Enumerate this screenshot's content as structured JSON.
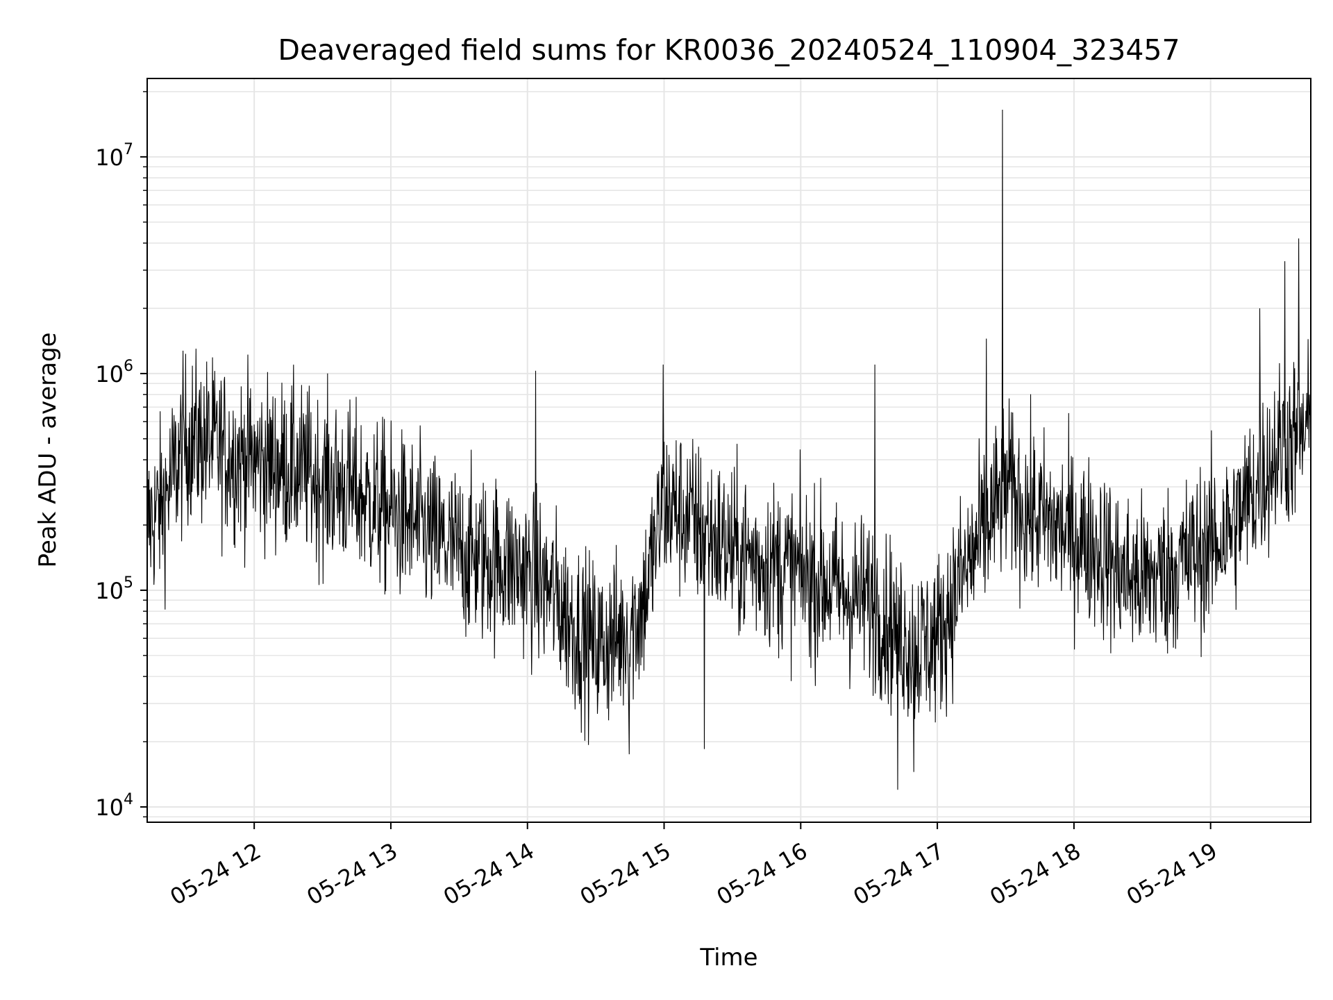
{
  "chart_data": {
    "type": "line",
    "title": "Deaveraged field sums for KR0036_20240524_110904_323457",
    "xlabel": "Time",
    "ylabel": "Peak ADU - average",
    "yscale": "log",
    "ylim": [
      8500,
      23000000
    ],
    "y_ticks": [
      {
        "value": 10000,
        "base": "10",
        "exp": "4"
      },
      {
        "value": 100000,
        "base": "10",
        "exp": "5"
      },
      {
        "value": 1000000,
        "base": "10",
        "exp": "6"
      },
      {
        "value": 10000000,
        "base": "10",
        "exp": "7"
      }
    ],
    "xlim": [
      "2024-05-24 11:13",
      "2024-05-24 19:44"
    ],
    "x_ticks": [
      {
        "value": "2024-05-24 12:00",
        "label": "05-24 12"
      },
      {
        "value": "2024-05-24 13:00",
        "label": "05-24 13"
      },
      {
        "value": "2024-05-24 14:00",
        "label": "05-24 14"
      },
      {
        "value": "2024-05-24 15:00",
        "label": "05-24 15"
      },
      {
        "value": "2024-05-24 16:00",
        "label": "05-24 16"
      },
      {
        "value": "2024-05-24 17:00",
        "label": "05-24 17"
      },
      {
        "value": "2024-05-24 18:00",
        "label": "05-24 18"
      },
      {
        "value": "2024-05-24 19:00",
        "label": "05-24 19"
      }
    ],
    "grid": true,
    "line_color": "#000000",
    "grid_color": "#e6e6e6",
    "series": [
      {
        "x": [
          "2024-05-24 11:13",
          "2024-05-24 11:20",
          "2024-05-24 11:30",
          "2024-05-24 11:40",
          "2024-05-24 11:50",
          "2024-05-24 12:00",
          "2024-05-24 12:10",
          "2024-05-24 12:20",
          "2024-05-24 12:30",
          "2024-05-24 12:40",
          "2024-05-24 12:50",
          "2024-05-24 13:00",
          "2024-05-24 13:10",
          "2024-05-24 13:20",
          "2024-05-24 13:30",
          "2024-05-24 13:40",
          "2024-05-24 13:50",
          "2024-05-24 14:00",
          "2024-05-24 14:10",
          "2024-05-24 14:20",
          "2024-05-24 14:30",
          "2024-05-24 14:40",
          "2024-05-24 14:50",
          "2024-05-24 15:00",
          "2024-05-24 15:10",
          "2024-05-24 15:20",
          "2024-05-24 15:30",
          "2024-05-24 15:40",
          "2024-05-24 15:50",
          "2024-05-24 16:00",
          "2024-05-24 16:10",
          "2024-05-24 16:20",
          "2024-05-24 16:30",
          "2024-05-24 16:40",
          "2024-05-24 16:50",
          "2024-05-24 17:00",
          "2024-05-24 17:10",
          "2024-05-24 17:20",
          "2024-05-24 17:30",
          "2024-05-24 17:40",
          "2024-05-24 17:50",
          "2024-05-24 18:00",
          "2024-05-24 18:10",
          "2024-05-24 18:20",
          "2024-05-24 18:30",
          "2024-05-24 18:40",
          "2024-05-24 18:50",
          "2024-05-24 19:00",
          "2024-05-24 19:10",
          "2024-05-24 19:20",
          "2024-05-24 19:30",
          "2024-05-24 19:44"
        ],
        "values": [
          200000,
          250000,
          500000,
          480000,
          420000,
          400000,
          380000,
          360000,
          320000,
          300000,
          260000,
          230000,
          200000,
          170000,
          150000,
          140000,
          135000,
          120000,
          100000,
          70000,
          55000,
          60000,
          80000,
          250000,
          220000,
          180000,
          150000,
          140000,
          130000,
          120000,
          110000,
          95000,
          90000,
          70000,
          55000,
          60000,
          110000,
          180000,
          300000,
          230000,
          200000,
          180000,
          160000,
          120000,
          110000,
          120000,
          140000,
          160000,
          200000,
          300000,
          450000,
          550000
        ],
        "noise_decades": 0.28,
        "spikes": [
          {
            "x": "2024-05-24 17:29",
            "y": 16500000
          },
          {
            "x": "2024-05-24 19:39",
            "y": 4200000
          },
          {
            "x": "2024-05-24 19:33",
            "y": 3300000
          },
          {
            "x": "2024-05-24 19:22",
            "y": 2000000
          },
          {
            "x": "2024-05-24 17:22",
            "y": 1450000
          },
          {
            "x": "2024-05-24 16:33",
            "y": 1100000
          },
          {
            "x": "2024-05-24 15:00",
            "y": 1100000
          },
          {
            "x": "2024-05-24 14:04",
            "y": 1030000
          },
          {
            "x": "2024-05-24 16:43",
            "y": 12000
          },
          {
            "x": "2024-05-24 16:50",
            "y": 14500
          },
          {
            "x": "2024-05-24 14:45",
            "y": 17500
          },
          {
            "x": "2024-05-24 15:18",
            "y": 18500
          }
        ]
      }
    ]
  }
}
